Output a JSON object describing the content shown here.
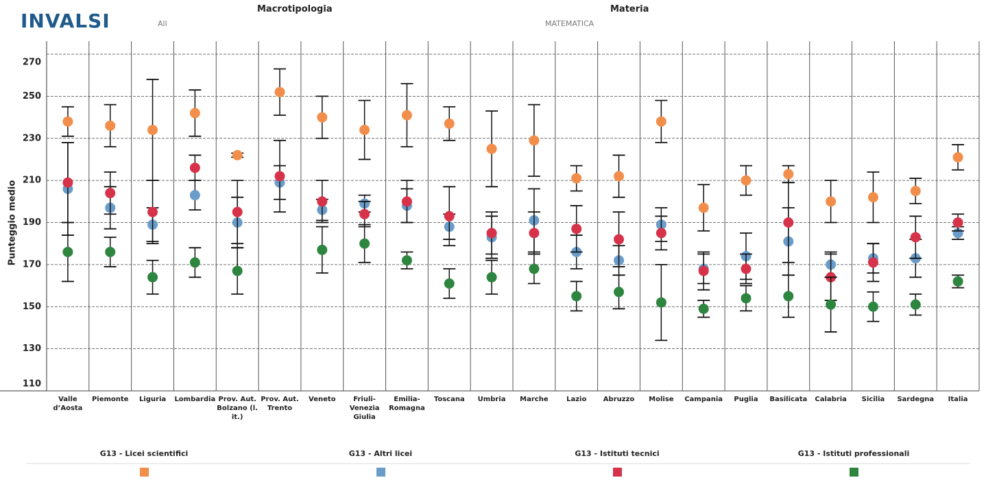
{
  "header": {
    "logo": "INVALSI",
    "filters": [
      {
        "label": "Macrotipologia",
        "value": "All"
      },
      {
        "label": "Materia",
        "value": "MATEMATICA"
      }
    ]
  },
  "chart_data": {
    "type": "dot",
    "ylabel": "Punteggio medio",
    "categories": [
      "Valle d’Aosta",
      "Piemonte",
      "Liguria",
      "Lombardia",
      "Prov. Aut. Bolzano (l. it.)",
      "Prov. Aut. Trento",
      "Veneto",
      "Friuli-Venezia Giulia",
      "Emilia-Romagna",
      "Toscana",
      "Umbria",
      "Marche",
      "Lazio",
      "Abruzzo",
      "Molise",
      "Campania",
      "Puglia",
      "Basilicata",
      "Calabria",
      "Sicilia",
      "Sardegna",
      "Italia"
    ],
    "ylim": [
      110,
      270
    ],
    "yticks": [
      110,
      130,
      150,
      170,
      190,
      210,
      230,
      250,
      270
    ],
    "grid": true,
    "series": [
      {
        "name": "G13 - Licei scientifici",
        "color": "#f28e4b",
        "values": [
          238,
          236,
          234,
          242,
          222,
          252,
          240,
          234,
          241,
          237,
          225,
          229,
          211,
          212,
          238,
          197,
          210,
          213,
          200,
          202,
          205,
          221
        ],
        "errors": [
          7,
          10,
          24,
          11,
          1,
          11,
          10,
          14,
          15,
          8,
          18,
          17,
          6,
          10,
          10,
          11,
          7,
          4,
          10,
          12,
          6,
          6
        ]
      },
      {
        "name": "G13 - Altri licei",
        "color": "#6a9cc9",
        "values": [
          206,
          197,
          189,
          203,
          190,
          209,
          196,
          199,
          198,
          188,
          183,
          191,
          176,
          172,
          189,
          168,
          174,
          181,
          170,
          173,
          173,
          185
        ],
        "errors": [
          22,
          10,
          8,
          7,
          12,
          8,
          5,
          4,
          8,
          6,
          10,
          15,
          8,
          7,
          8,
          7,
          11,
          16,
          6,
          7,
          9,
          3
        ]
      },
      {
        "name": "G13 - Istituti tecnici",
        "color": "#d6334a",
        "values": [
          209,
          204,
          195,
          216,
          195,
          212,
          200,
          194,
          200,
          193,
          185,
          185,
          187,
          182,
          185,
          167,
          168,
          190,
          164,
          171,
          183,
          190
        ],
        "errors": [
          19,
          10,
          15,
          6,
          15,
          17,
          10,
          6,
          10,
          14,
          10,
          10,
          11,
          13,
          8,
          9,
          7,
          19,
          11,
          9,
          10,
          4
        ]
      },
      {
        "name": "G13 - Istituti professionali",
        "color": "#2e8540",
        "values": [
          176,
          176,
          164,
          171,
          167,
          null,
          177,
          180,
          172,
          161,
          164,
          168,
          155,
          157,
          152,
          149,
          154,
          155,
          151,
          150,
          151,
          162
        ],
        "errors": [
          14,
          7,
          8,
          7,
          11,
          null,
          11,
          9,
          4,
          7,
          8,
          7,
          7,
          8,
          18,
          4,
          6,
          10,
          13,
          7,
          5,
          3
        ]
      }
    ]
  }
}
